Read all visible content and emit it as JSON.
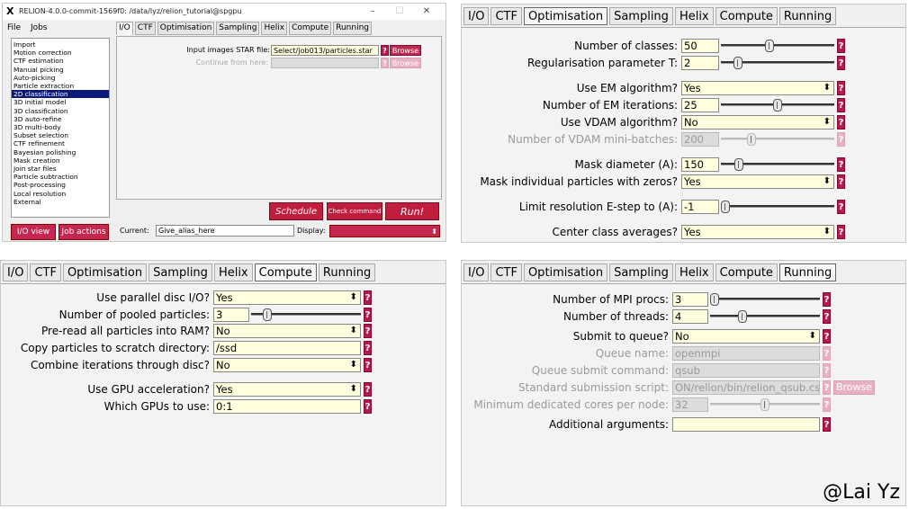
{
  "window": {
    "title": "RELION-4.0.0-commit-1569f0: /data/lyz/relion_tutorial@spgpu",
    "menu": [
      "File",
      "Jobs"
    ],
    "controls": [
      "–",
      "☐",
      "✕"
    ]
  },
  "joblist": [
    "Import",
    "Motion correction",
    "CTF estimation",
    "Manual picking",
    "Auto-picking",
    "Particle extraction",
    "2D classification",
    "3D initial model",
    "3D classification",
    "3D auto-refine",
    "3D multi-body",
    "Subset selection",
    "CTF refinement",
    "Bayesian polishing",
    "Mask creation",
    "Join star files",
    "Particle subtraction",
    "Post-processing",
    "Local resolution",
    "External"
  ],
  "joblist_selected": "2D classification",
  "main_tabs": [
    "I/O",
    "CTF",
    "Optimisation",
    "Sampling",
    "Helix",
    "Compute",
    "Running"
  ],
  "io": {
    "star_label": "Input images STAR file:",
    "star_value": "Select/job013/particles.star",
    "continue_label": "Continue from here:",
    "continue_value": "",
    "browse": "Browse",
    "help": "?"
  },
  "actions": {
    "schedule": "Schedule",
    "check": "Check command",
    "run": "Run!",
    "io_view": "I/O view",
    "job_actions": "Job actions",
    "current_label": "Current:",
    "current_value": "Give_alias_here",
    "display_label": "Display:"
  },
  "optimisation": {
    "tabs": [
      "I/O",
      "CTF",
      "Optimisation",
      "Sampling",
      "Helix",
      "Compute",
      "Running"
    ],
    "rows": [
      {
        "label": "Number of classes:",
        "value": "50"
      },
      {
        "label": "Regularisation parameter T:",
        "value": "2"
      },
      {
        "label": "Use EM algorithm?",
        "value": "Yes"
      },
      {
        "label": "Number of EM iterations:",
        "value": "25"
      },
      {
        "label": "Use VDAM algorithm?",
        "value": "No"
      },
      {
        "label": "Number of VDAM mini-batches:",
        "value": "200"
      },
      {
        "label": "Mask diameter (A):",
        "value": "150"
      },
      {
        "label": "Mask individual particles with zeros?",
        "value": "Yes"
      },
      {
        "label": "Limit resolution E-step to (A):",
        "value": "-1"
      },
      {
        "label": "Center class averages?",
        "value": "Yes"
      }
    ]
  },
  "compute": {
    "tabs": [
      "I/O",
      "CTF",
      "Optimisation",
      "Sampling",
      "Helix",
      "Compute",
      "Running"
    ],
    "rows": [
      {
        "label": "Use parallel disc I/O?",
        "value": "Yes"
      },
      {
        "label": "Number of pooled particles:",
        "value": "3"
      },
      {
        "label": "Pre-read all particles into RAM?",
        "value": "No"
      },
      {
        "label": "Copy particles to scratch directory:",
        "value": "/ssd"
      },
      {
        "label": "Combine iterations through disc?",
        "value": "No"
      },
      {
        "label": "Use GPU acceleration?",
        "value": "Yes"
      },
      {
        "label": "Which GPUs to use:",
        "value": "0:1"
      }
    ]
  },
  "running": {
    "tabs": [
      "I/O",
      "CTF",
      "Optimisation",
      "Sampling",
      "Helix",
      "Compute",
      "Running"
    ],
    "rows": [
      {
        "label": "Number of MPI procs:",
        "value": "3"
      },
      {
        "label": "Number of threads:",
        "value": "4"
      },
      {
        "label": "Submit to queue?",
        "value": "No"
      },
      {
        "label": "Queue name:",
        "value": "openmpi"
      },
      {
        "label": "Queue submit command:",
        "value": "qsub"
      },
      {
        "label": "Standard submission script:",
        "value": "ON/relion/bin/relion_qsub.csh"
      },
      {
        "label": "Minimum dedicated cores per node:",
        "value": "32"
      },
      {
        "label": "Additional arguments:",
        "value": ""
      }
    ],
    "browse": "Browse"
  },
  "watermark": "@Lai Yz"
}
